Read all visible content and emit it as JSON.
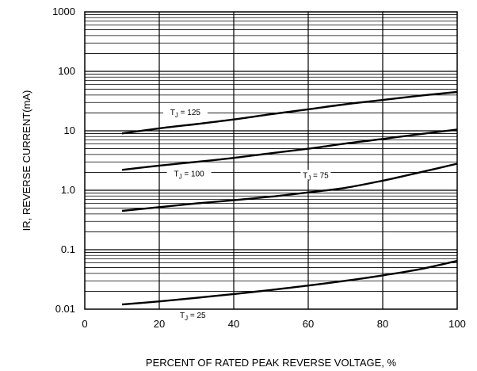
{
  "chart_data": {
    "type": "line",
    "title": "",
    "xlabel": "PERCENT OF RATED PEAK REVERSE VOLTAGE, %",
    "ylabel": "IR, REVERSE CURRENT(mA)",
    "xlim": [
      0,
      100
    ],
    "ylim": [
      0.01,
      1000
    ],
    "yscale": "log",
    "grid": true,
    "legend": "none",
    "x_ticks": [
      "0",
      "20",
      "40",
      "60",
      "80",
      "100"
    ],
    "y_ticks": [
      "0.01",
      "0.1",
      "1.0",
      "10",
      "100",
      "1000"
    ],
    "line_color": "#000000",
    "series": [
      {
        "label_main": "T",
        "label_sub": "J",
        "label_rest": " = 125",
        "x": [
          10,
          20,
          30,
          40,
          50,
          60,
          70,
          80,
          90,
          100
        ],
        "values": [
          9,
          11,
          13,
          15.5,
          19,
          23,
          28,
          33,
          39,
          45
        ]
      },
      {
        "label_main": "T",
        "label_sub": "J",
        "label_rest": " = 100",
        "x": [
          10,
          20,
          30,
          40,
          50,
          60,
          70,
          80,
          90,
          100
        ],
        "values": [
          2.2,
          2.6,
          3.0,
          3.5,
          4.2,
          5.0,
          6.1,
          7.3,
          8.8,
          10.5
        ]
      },
      {
        "label_main": "T",
        "label_sub": "J",
        "label_rest": " = 75",
        "x": [
          10,
          20,
          30,
          40,
          50,
          60,
          70,
          80,
          90,
          100
        ],
        "values": [
          0.45,
          0.52,
          0.6,
          0.68,
          0.78,
          0.92,
          1.1,
          1.45,
          2.0,
          2.8
        ]
      },
      {
        "label_main": "T",
        "label_sub": "J",
        "label_rest": " = 25",
        "x": [
          10,
          20,
          30,
          40,
          50,
          60,
          70,
          80,
          90,
          100
        ],
        "values": [
          0.012,
          0.0135,
          0.0155,
          0.018,
          0.021,
          0.025,
          0.03,
          0.037,
          0.047,
          0.065
        ]
      }
    ]
  }
}
